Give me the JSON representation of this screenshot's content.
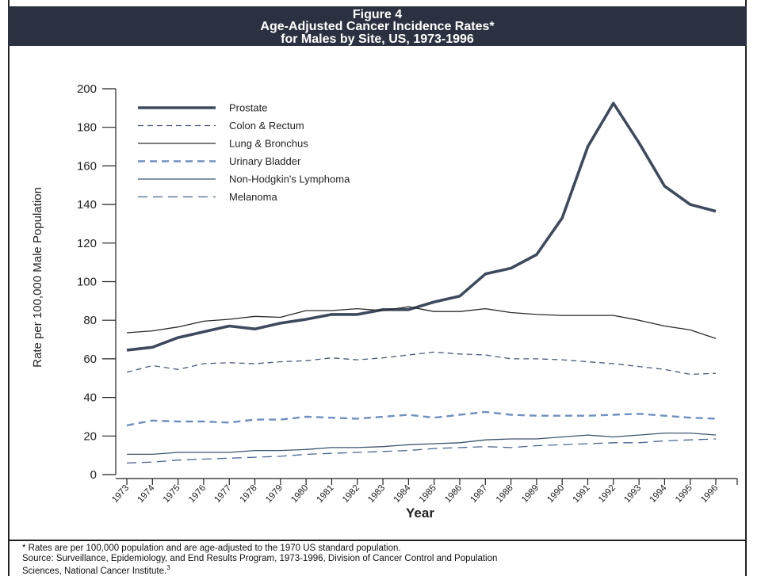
{
  "figure": {
    "label": "Figure 4",
    "title_line2": "Age-Adjusted Cancer Incidence Rates*",
    "title_line3": "for Males by Site, US, 1973-1996"
  },
  "notes": {
    "footnote": "* Rates are per 100,000 population and are age-adjusted to the 1970 US standard population.",
    "source_line1": "Source: Surveillance, Epidemiology, and End Results Program, 1973-1996, Division of Cancer Control and Population",
    "source_line2": "Sciences, National Cancer Institute.",
    "source_superscript": "3"
  },
  "chart_data": {
    "type": "line",
    "xlabel": "Year",
    "ylabel": "Rate per 100,000 Male Population",
    "ylim": [
      0,
      200
    ],
    "yticks": [
      0,
      20,
      40,
      60,
      80,
      100,
      120,
      140,
      160,
      180,
      200
    ],
    "x": [
      1973,
      1974,
      1975,
      1976,
      1977,
      1978,
      1979,
      1980,
      1981,
      1982,
      1983,
      1984,
      1985,
      1986,
      1987,
      1988,
      1989,
      1990,
      1991,
      1992,
      1993,
      1994,
      1995,
      1996
    ],
    "x_tick_labels": [
      "1973",
      "1974",
      "1975",
      "1976",
      "1977",
      "1978",
      "1979",
      "1980",
      "1981",
      "1982",
      "1983",
      "1984",
      "1985",
      "1986",
      "1987",
      "1988",
      "1989",
      "1990",
      "1991",
      "1992",
      "1993",
      "1994",
      "1995",
      "1996"
    ],
    "grid": false,
    "legend_position": "top-left",
    "series": [
      {
        "name": "Prostate",
        "color": "#3d4a5e",
        "style": "thick-solid",
        "values": [
          64.5,
          66.0,
          71.0,
          74.0,
          77.0,
          75.5,
          78.5,
          80.5,
          83.0,
          83.0,
          85.5,
          85.5,
          89.5,
          92.5,
          104.0,
          107.0,
          114.0,
          133.0,
          170.0,
          192.5,
          172.0,
          149.5,
          140.0,
          136.5
        ]
      },
      {
        "name": "Colon & Rectum",
        "color": "#4a5a78",
        "style": "dashed",
        "values": [
          53.0,
          56.5,
          54.5,
          57.5,
          58.0,
          57.5,
          58.5,
          59.0,
          60.5,
          59.5,
          60.5,
          62.0,
          63.5,
          62.5,
          62.0,
          60.0,
          60.0,
          59.5,
          58.5,
          57.5,
          56.0,
          54.5,
          52.0,
          52.5
        ]
      },
      {
        "name": "Lung & Bronchus",
        "color": "#2a2a2a",
        "style": "thin-solid",
        "values": [
          73.5,
          74.5,
          76.5,
          79.5,
          80.5,
          82.0,
          81.5,
          85.0,
          85.0,
          86.0,
          85.0,
          87.0,
          84.5,
          84.5,
          86.0,
          84.0,
          83.0,
          82.5,
          82.5,
          82.5,
          80.0,
          77.0,
          75.0,
          70.5
        ]
      },
      {
        "name": "Urinary Bladder",
        "color": "#6f8fc0",
        "style": "wide-dashed",
        "values": [
          25.5,
          28.0,
          27.5,
          27.5,
          27.0,
          28.5,
          28.5,
          30.0,
          29.5,
          29.0,
          30.0,
          31.0,
          29.5,
          31.0,
          32.5,
          31.0,
          30.5,
          30.5,
          30.5,
          31.0,
          31.5,
          30.5,
          29.5,
          29.0
        ]
      },
      {
        "name": "Non-Hodgkin's Lymphoma",
        "color": "#3c5570",
        "style": "thin-solid",
        "values": [
          10.5,
          10.5,
          11.5,
          11.5,
          11.5,
          12.5,
          12.5,
          13.0,
          14.0,
          14.0,
          14.5,
          15.5,
          16.0,
          16.5,
          18.0,
          18.5,
          18.5,
          19.5,
          20.5,
          19.5,
          20.5,
          21.5,
          21.5,
          20.5
        ]
      },
      {
        "name": "Melanoma",
        "color": "#4a6690",
        "style": "long-dashed",
        "values": [
          6.0,
          6.5,
          7.5,
          8.0,
          8.5,
          9.0,
          9.5,
          10.5,
          11.0,
          11.5,
          12.0,
          12.5,
          13.5,
          14.0,
          14.5,
          14.0,
          15.0,
          15.5,
          16.0,
          16.5,
          16.5,
          17.5,
          18.0,
          18.5
        ]
      }
    ]
  }
}
